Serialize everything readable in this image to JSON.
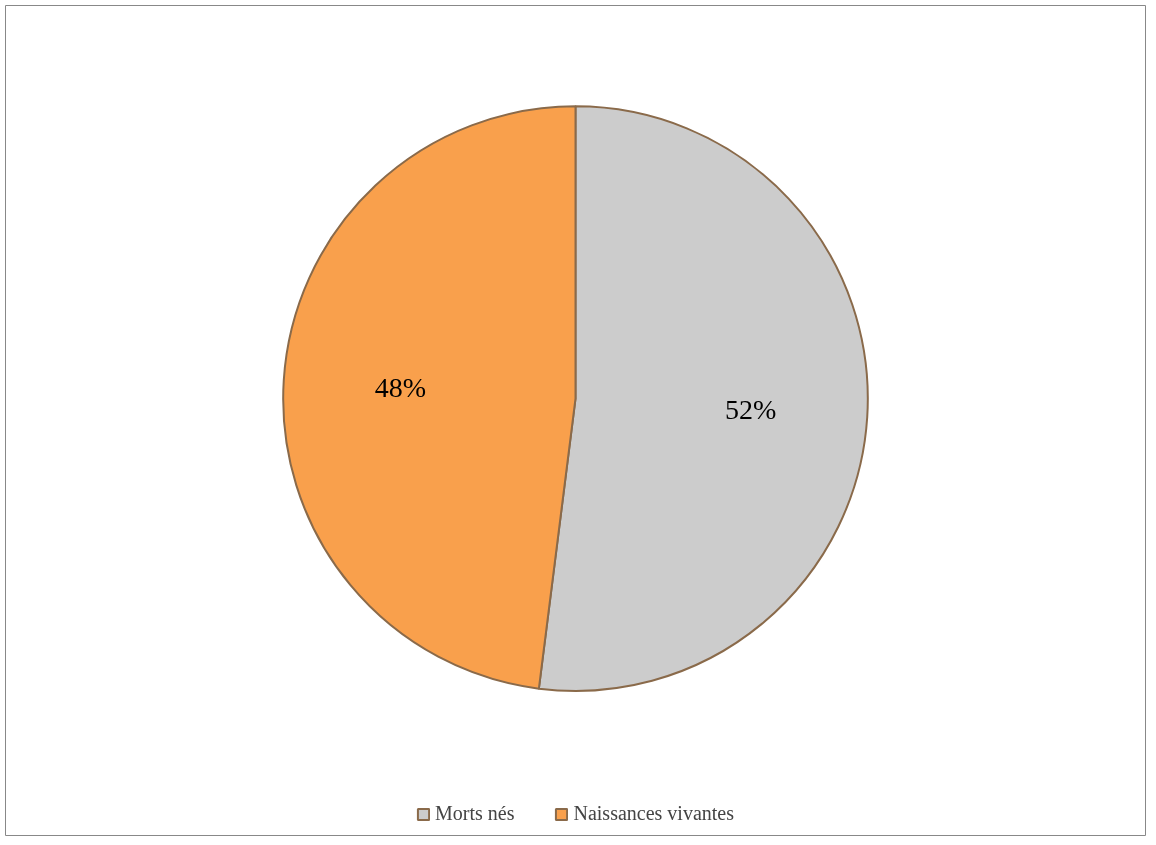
{
  "chart_data": {
    "type": "pie",
    "categories": [
      "Morts nés",
      "Naissances vivantes"
    ],
    "values": [
      52,
      48
    ],
    "colors": [
      "#cccccc",
      "#f9a04c"
    ],
    "value_labels": [
      "52%",
      "48%"
    ],
    "legend": "bottom"
  }
}
